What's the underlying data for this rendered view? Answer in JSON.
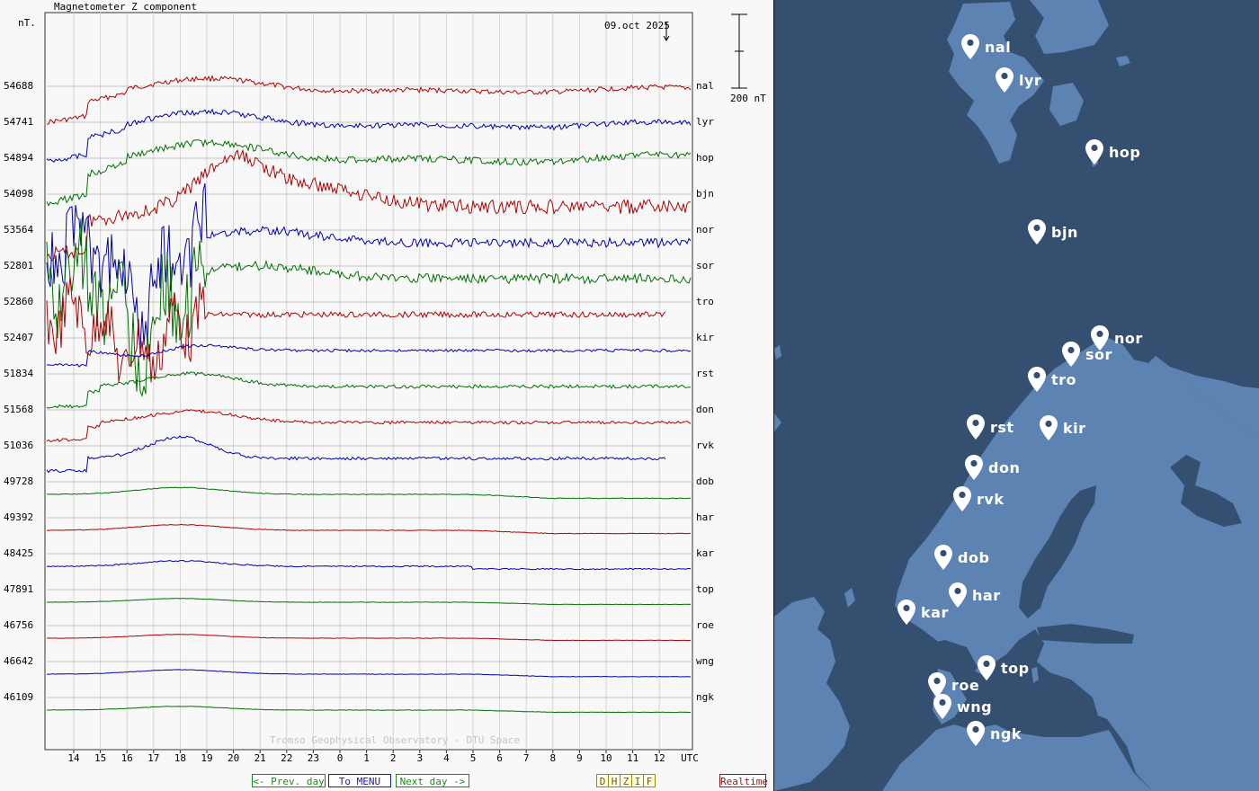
{
  "header": {
    "title": "Magnetometer Z component",
    "unit": "nT.",
    "date": "09.oct 2025",
    "scale_label": "200 nT",
    "watermark": "Tromso Geophysical Observatory - DTU Space"
  },
  "chart_data": {
    "type": "line",
    "title": "Magnetometer Z component",
    "ylabel": "nT.",
    "xlabel": "UTC",
    "x_ticks": [
      "14",
      "15",
      "16",
      "17",
      "18",
      "19",
      "20",
      "21",
      "22",
      "23",
      "0",
      "1",
      "2",
      "3",
      "4",
      "5",
      "6",
      "7",
      "8",
      "9",
      "10",
      "11",
      "12"
    ],
    "x_unit_label": "UTC",
    "x_range_hours": [
      13,
      13.9
    ],
    "scale_bar_nT": 200,
    "grid": true,
    "series": [
      {
        "name": "nal",
        "baseline": 54688,
        "color": "#b00000",
        "profile": "storm_high",
        "amp": 0.8
      },
      {
        "name": "lyr",
        "baseline": 54741,
        "color": "#0000b0",
        "profile": "storm_high",
        "amp": 0.9
      },
      {
        "name": "hop",
        "baseline": 54894,
        "color": "#007000",
        "profile": "storm_high",
        "amp": 1.1
      },
      {
        "name": "bjn",
        "baseline": 54098,
        "color": "#b00000",
        "profile": "storm_mid",
        "amp": 1.6
      },
      {
        "name": "nor",
        "baseline": 53564,
        "color": "#0000b0",
        "profile": "storm_aurora",
        "amp": 1.7
      },
      {
        "name": "sor",
        "baseline": 52801,
        "color": "#007000",
        "profile": "storm_aurora",
        "amp": 1.8
      },
      {
        "name": "tro",
        "baseline": 52860,
        "color": "#b00000",
        "profile": "storm_aurora_end",
        "amp": 1.6
      },
      {
        "name": "kir",
        "baseline": 52407,
        "color": "#0000b0",
        "profile": "storm_dip",
        "amp": 0.8
      },
      {
        "name": "rst",
        "baseline": 51834,
        "color": "#007000",
        "profile": "storm_bump",
        "amp": 0.8
      },
      {
        "name": "don",
        "baseline": 51568,
        "color": "#b00000",
        "profile": "storm_bump",
        "amp": 0.7
      },
      {
        "name": "rvk",
        "baseline": 51036,
        "color": "#0000b0",
        "profile": "storm_bump_end",
        "amp": 0.7
      },
      {
        "name": "dob",
        "baseline": 49728,
        "color": "#007000",
        "profile": "smooth",
        "amp": 0.55
      },
      {
        "name": "har",
        "baseline": 49392,
        "color": "#b00000",
        "profile": "smooth",
        "amp": 0.45
      },
      {
        "name": "kar",
        "baseline": 48425,
        "color": "#0000b0",
        "profile": "smooth_noisy",
        "amp": 0.5
      },
      {
        "name": "top",
        "baseline": 47891,
        "color": "#007000",
        "profile": "smooth",
        "amp": 0.3
      },
      {
        "name": "roe",
        "baseline": 46756,
        "color": "#b00000",
        "profile": "smooth",
        "amp": 0.3
      },
      {
        "name": "wng",
        "baseline": 46642,
        "color": "#0000b0",
        "profile": "smooth",
        "amp": 0.35
      },
      {
        "name": "ngk",
        "baseline": 46109,
        "color": "#007000",
        "profile": "smooth",
        "amp": 0.3
      }
    ]
  },
  "nav": {
    "prev_day": "<- Prev. day",
    "to_menu": "To MENU",
    "next_day": "Next day ->",
    "components": [
      "D",
      "H",
      "Z",
      "I",
      "F"
    ],
    "realtime": "Realtime"
  },
  "map": {
    "stations": [
      {
        "id": "nal",
        "label": "nal"
      },
      {
        "id": "lyr",
        "label": "lyr"
      },
      {
        "id": "hop",
        "label": "hop"
      },
      {
        "id": "bjn",
        "label": "bjn"
      },
      {
        "id": "nor",
        "label": "nor"
      },
      {
        "id": "sor",
        "label": "sor"
      },
      {
        "id": "tro",
        "label": "tro"
      },
      {
        "id": "rst",
        "label": "rst"
      },
      {
        "id": "kir",
        "label": "kir"
      },
      {
        "id": "don",
        "label": "don"
      },
      {
        "id": "rvk",
        "label": "rvk"
      },
      {
        "id": "dob",
        "label": "dob"
      },
      {
        "id": "har",
        "label": "har"
      },
      {
        "id": "kar",
        "label": "kar"
      },
      {
        "id": "top",
        "label": "top"
      },
      {
        "id": "roe",
        "label": "roe"
      },
      {
        "id": "wng",
        "label": "wng"
      },
      {
        "id": "ngk",
        "label": "ngk"
      }
    ],
    "colors": {
      "sea": "#344f70",
      "land": "#5d83b3",
      "pin": "#ffffff"
    }
  }
}
